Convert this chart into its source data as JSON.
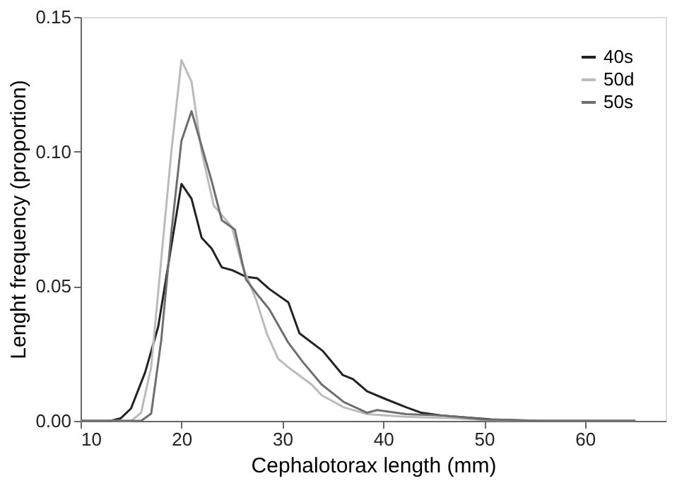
{
  "chart_data": {
    "type": "line",
    "xlabel": "Cephalotorax length (mm)",
    "ylabel": "Lenght frequency (proportion)",
    "xlim": [
      10,
      68
    ],
    "xticks": [
      10,
      20,
      30,
      40,
      50,
      60
    ],
    "ylim": [
      0,
      0.15
    ],
    "yticks": [
      {
        "value": 0,
        "label": "0.00"
      },
      {
        "value": 0.05,
        "label": "0.05"
      },
      {
        "value": 0.1,
        "label": "0.10"
      },
      {
        "value": 0.15,
        "label": "0.15"
      }
    ],
    "grid": false,
    "legend": "top right",
    "marker": "none",
    "line_style": "solid",
    "series": [
      {
        "name": "40s",
        "color": "#222222",
        "x": [
          10,
          13,
          14,
          15,
          16.4,
          17.7,
          19,
          20,
          21,
          22,
          23,
          24,
          25,
          26.4,
          27.5,
          28.7,
          30.6,
          31.7,
          34,
          36,
          37,
          38.4,
          40.3,
          42.3,
          43.8,
          45.8,
          50.7,
          55.7,
          65
        ],
        "values": [
          0,
          0,
          0.001,
          0.0046,
          0.018,
          0.035,
          0.065,
          0.088,
          0.0825,
          0.068,
          0.064,
          0.057,
          0.056,
          0.0535,
          0.053,
          0.049,
          0.044,
          0.0325,
          0.026,
          0.017,
          0.0155,
          0.011,
          0.008,
          0.005,
          0.003,
          0.002,
          0.0005,
          0,
          0
        ]
      },
      {
        "name": "50d",
        "color": "#bbbbbb",
        "x": [
          10,
          15,
          16,
          17,
          18,
          19,
          20,
          21,
          22,
          23.2,
          25,
          26,
          27.4,
          28.5,
          29.6,
          30.9,
          32.9,
          33.9,
          36.1,
          38.4,
          42.3,
          47,
          50,
          55,
          65
        ],
        "values": [
          0,
          0,
          0.003,
          0.02,
          0.06,
          0.1,
          0.134,
          0.126,
          0.1,
          0.08,
          0.072,
          0.058,
          0.045,
          0.032,
          0.023,
          0.019,
          0.0135,
          0.0095,
          0.005,
          0.0025,
          0.0015,
          0.001,
          0.0003,
          0,
          0
        ]
      },
      {
        "name": "50s",
        "color": "#6e6e6e",
        "x": [
          10,
          16,
          17,
          18,
          19,
          20,
          21,
          22,
          23,
          24,
          25.3,
          26.4,
          27.5,
          28.7,
          30.6,
          32,
          33.9,
          36.1,
          38.4,
          39.4,
          42.3,
          45.8,
          47.3,
          50,
          55,
          65
        ],
        "values": [
          0,
          0,
          0.0027,
          0.03,
          0.07,
          0.104,
          0.115,
          0.102,
          0.089,
          0.0745,
          0.071,
          0.0525,
          0.047,
          0.0415,
          0.029,
          0.022,
          0.0135,
          0.007,
          0.003,
          0.004,
          0.0025,
          0.002,
          0.0015,
          0.0005,
          0,
          0
        ]
      }
    ]
  }
}
